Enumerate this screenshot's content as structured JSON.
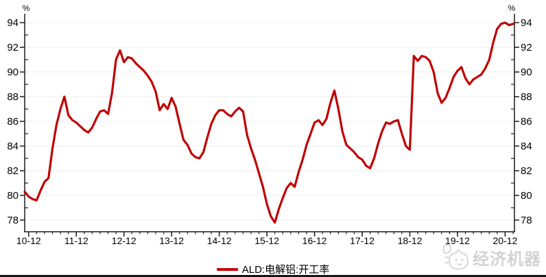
{
  "chart_data": {
    "type": "line",
    "title": "",
    "unit_left": "%",
    "unit_right": "%",
    "ylim": [
      78,
      94
    ],
    "y_ticks": [
      78,
      80,
      82,
      84,
      86,
      88,
      90,
      92,
      94
    ],
    "y_minor_ticks": [
      79,
      81,
      83,
      85,
      87,
      89,
      91,
      93
    ],
    "x_tick_labels": [
      "10-12",
      "11-12",
      "12-12",
      "13-12",
      "14-12",
      "15-12",
      "16-12",
      "17-12",
      "18-12",
      "19-12",
      "20-12"
    ],
    "x_tick_month_indices": [
      1,
      13,
      25,
      37,
      49,
      61,
      73,
      85,
      97,
      109,
      121
    ],
    "grid": "horizontal",
    "legend_position": "bottom-center",
    "series": [
      {
        "name": "ALD:电解铝:开工率",
        "color": "#c00000",
        "values": [
          80.3,
          79.9,
          79.7,
          79.6,
          80.4,
          81.1,
          81.4,
          83.8,
          85.7,
          87.0,
          88.0,
          86.5,
          86.1,
          85.9,
          85.6,
          85.3,
          85.1,
          85.5,
          86.2,
          86.8,
          86.9,
          86.6,
          88.3,
          91.0,
          91.75,
          90.8,
          91.2,
          91.1,
          90.7,
          90.4,
          90.1,
          89.7,
          89.2,
          88.4,
          86.9,
          87.4,
          87.0,
          87.9,
          87.2,
          85.8,
          84.5,
          84.1,
          83.4,
          83.1,
          83.0,
          83.5,
          84.7,
          85.8,
          86.5,
          86.9,
          86.9,
          86.6,
          86.4,
          86.8,
          87.1,
          86.8,
          84.9,
          83.8,
          82.9,
          81.8,
          80.7,
          79.3,
          78.3,
          77.8,
          78.9,
          79.8,
          80.6,
          81.0,
          80.7,
          81.9,
          82.9,
          84.1,
          85.0,
          85.9,
          86.1,
          85.7,
          86.2,
          87.5,
          88.5,
          87.0,
          85.2,
          84.1,
          83.8,
          83.5,
          83.1,
          82.9,
          82.4,
          82.2,
          83.0,
          84.2,
          85.2,
          85.9,
          85.8,
          86.0,
          86.1,
          85.0,
          84.0,
          83.7,
          91.3,
          90.9,
          91.3,
          91.2,
          90.9,
          90.0,
          88.3,
          87.5,
          87.9,
          88.7,
          89.6,
          90.1,
          90.4,
          89.5,
          89.0,
          89.4,
          89.6,
          89.8,
          90.3,
          91.0,
          92.4,
          93.5,
          93.9,
          94.0,
          93.8,
          93.9
        ]
      }
    ]
  },
  "legend": {
    "label": "ALD:电解铝:开工率",
    "color": "#c00000"
  },
  "watermark": {
    "text": "经济机器",
    "icon": "cat-doodle-icon"
  },
  "colors": {
    "line": "#c00000",
    "axis": "#1a1a1a",
    "grid": "#ededed",
    "watermark": "#d2d2d2",
    "background": "#ffffff"
  }
}
